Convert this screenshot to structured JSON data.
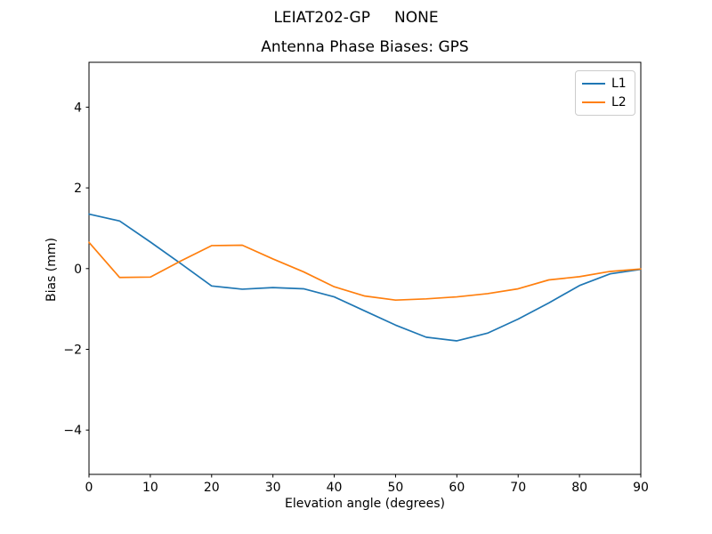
{
  "chart_data": {
    "type": "line",
    "suptitle": "LEIAT202-GP     NONE",
    "title": "Antenna Phase Biases: GPS",
    "xlabel": "Elevation angle (degrees)",
    "ylabel": "Bias (mm)",
    "xlim": [
      0,
      90
    ],
    "ylim": [
      -5.1,
      5.1
    ],
    "grid": false,
    "legend_position": "upper right",
    "xtick_values": [
      0,
      10,
      20,
      30,
      40,
      50,
      60,
      70,
      80,
      90
    ],
    "xtick_labels": [
      "0",
      "10",
      "20",
      "30",
      "40",
      "50",
      "60",
      "70",
      "80",
      "90"
    ],
    "ytick_values": [
      -4,
      -2,
      0,
      2,
      4
    ],
    "ytick_labels": [
      "−4",
      "−2",
      "0",
      "2",
      "4"
    ],
    "x": [
      0,
      5,
      10,
      15,
      20,
      25,
      30,
      35,
      40,
      45,
      50,
      55,
      60,
      65,
      70,
      75,
      80,
      85,
      90
    ],
    "series": [
      {
        "name": "L1",
        "color": "#1f77b4",
        "values": [
          1.35,
          1.18,
          0.66,
          0.12,
          -0.43,
          -0.51,
          -0.47,
          -0.5,
          -0.7,
          -1.05,
          -1.4,
          -1.7,
          -1.79,
          -1.6,
          -1.25,
          -0.85,
          -0.42,
          -0.13,
          -0.02
        ]
      },
      {
        "name": "L2",
        "color": "#ff7f0e",
        "values": [
          0.65,
          -0.22,
          -0.21,
          0.19,
          0.57,
          0.58,
          0.24,
          -0.08,
          -0.45,
          -0.68,
          -0.78,
          -0.75,
          -0.7,
          -0.62,
          -0.5,
          -0.28,
          -0.2,
          -0.07,
          -0.01
        ]
      }
    ],
    "frame_color": "#000000",
    "background_color": "#ffffff"
  }
}
